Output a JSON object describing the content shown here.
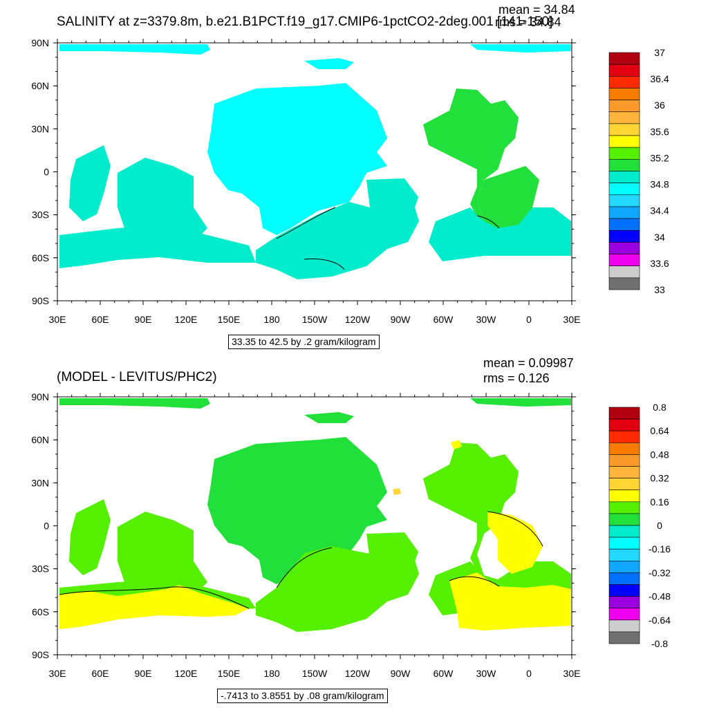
{
  "panel1": {
    "title": "SALINITY at z=3379.8m, b.e21.B1PCT.f19_g17.CMIP6-1pctCO2-2deg.001 [141-150]",
    "mean_text": "mean = 34.84",
    "rms_text": "rms = 34.84",
    "info": "33.35 to 42.5 by .2 gram/kilogram"
  },
  "panel2": {
    "title": "(MODEL - LEVITUS/PHC2)",
    "mean_text": "mean = 0.09987",
    "rms_text": "rms = 0.126",
    "info": "-.7413 to 3.8551 by .08 gram/kilogram"
  },
  "axes": {
    "lat_labels": [
      "90N",
      "60N",
      "30N",
      "0",
      "30S",
      "60S",
      "90S"
    ],
    "lon_labels": [
      "30E",
      "60E",
      "90E",
      "120E",
      "150E",
      "180",
      "150W",
      "120W",
      "90W",
      "60W",
      "30W",
      "0",
      "30E"
    ]
  },
  "colorbar1": {
    "labels": [
      "37",
      "36.4",
      "36",
      "35.6",
      "35.2",
      "34.8",
      "34.4",
      "34",
      "33.6",
      "33"
    ],
    "colors": [
      "#b0000f",
      "#e0000f",
      "#ff2a00",
      "#f77b00",
      "#fa9a2a",
      "#ffb53a",
      "#ffd633",
      "#ffff00",
      "#55ef00",
      "#22e03a",
      "#00eccc",
      "#00ffff",
      "#22d8ff",
      "#10a8ff",
      "#0070ff",
      "#0000ff",
      "#9900dd",
      "#ee00ee",
      "#cccccc",
      "#707070"
    ]
  },
  "colorbar2": {
    "labels": [
      "0.8",
      "0.64",
      "0.48",
      "0.32",
      "0.16",
      "0",
      "-0.16",
      "-0.32",
      "-0.48",
      "-0.64",
      "-0.8"
    ],
    "colors": [
      "#b0000f",
      "#e0000f",
      "#ff2a00",
      "#f77b00",
      "#fa9a2a",
      "#ffb53a",
      "#ffd633",
      "#ffff00",
      "#55ef00",
      "#22e03a",
      "#00eccc",
      "#00ffff",
      "#22d8ff",
      "#10a8ff",
      "#0070ff",
      "#0000ff",
      "#9900dd",
      "#ee00ee",
      "#cccccc",
      "#707070"
    ]
  },
  "fills": {
    "p1_main": "#00ffff",
    "p1_southern": "#00eccc",
    "p1_atlantic": "#22e03a",
    "p2_main": "#22e03a",
    "p2_south": "#55ef00",
    "p2_yellow": "#ffff00",
    "p2_orange": "#ffd633"
  }
}
